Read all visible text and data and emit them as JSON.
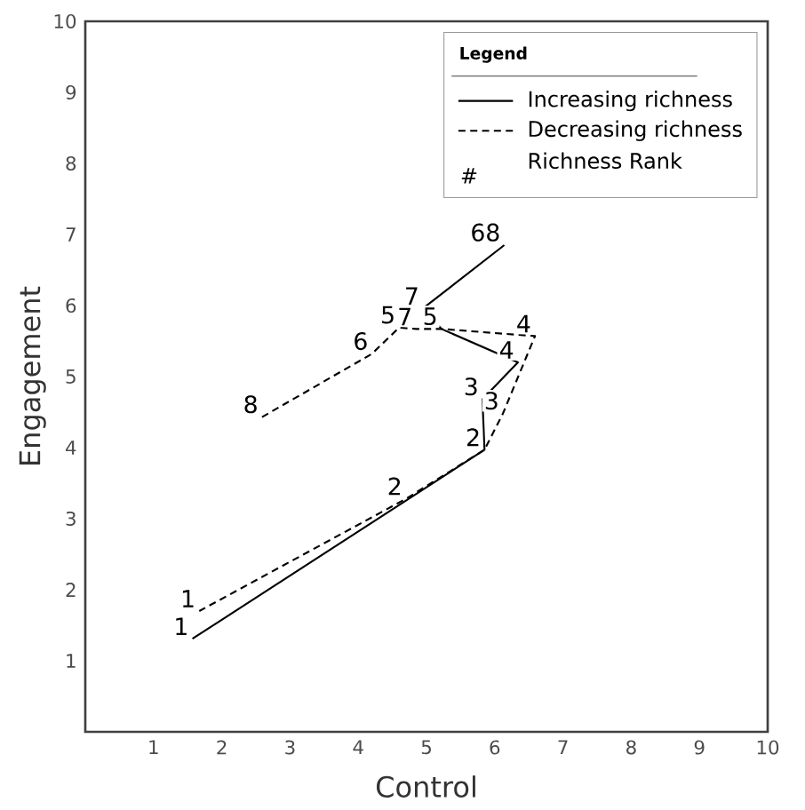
{
  "chart_data": {
    "type": "line",
    "xlabel": "Control",
    "ylabel": "Engagement",
    "xlim": [
      0,
      10
    ],
    "ylim": [
      0,
      10
    ],
    "xticks": [
      1,
      2,
      3,
      4,
      5,
      6,
      7,
      8,
      9,
      10
    ],
    "yticks": [
      1,
      2,
      3,
      4,
      5,
      6,
      7,
      8,
      9,
      10
    ],
    "legend": "top right",
    "legend_title": "Legend",
    "series": [
      {
        "name": "Increasing richness",
        "color": "#000000",
        "line_style": "solid",
        "x": [
          1.57,
          5.85,
          5.82,
          6.34,
          5.22,
          4.95,
          6.14
        ],
        "values": [
          1.31,
          3.97,
          4.68,
          5.2,
          5.67,
          5.96,
          6.85
        ]
      },
      {
        "name": "Decreasing richness",
        "color": "#000000",
        "line_style": "dashed",
        "x": [
          2.59,
          4.2,
          4.6,
          4.85,
          5.22,
          6.59,
          6.12,
          5.85,
          4.7,
          1.67
        ],
        "values": [
          4.43,
          5.32,
          5.69,
          5.67,
          5.67,
          5.57,
          4.48,
          3.97,
          3.28,
          1.7
        ]
      }
    ],
    "annotations": [
      {
        "text": "1",
        "x": 1.57,
        "y": 1.31
      },
      {
        "text": "1",
        "x": 1.67,
        "y": 1.7
      },
      {
        "text": "2",
        "x": 4.7,
        "y": 3.28
      },
      {
        "text": "2",
        "x": 5.85,
        "y": 3.97
      },
      {
        "text": "3",
        "x": 5.82,
        "y": 4.68
      },
      {
        "text": "3",
        "x": 6.12,
        "y": 4.48
      },
      {
        "text": "4",
        "x": 6.34,
        "y": 5.2
      },
      {
        "text": "4",
        "x": 6.59,
        "y": 5.57
      },
      {
        "text": "5",
        "x": 4.6,
        "y": 5.69
      },
      {
        "text": "7",
        "x": 4.85,
        "y": 5.67
      },
      {
        "text": "5",
        "x": 5.22,
        "y": 5.67
      },
      {
        "text": "7",
        "x": 4.95,
        "y": 5.96
      },
      {
        "text": "6",
        "x": 4.2,
        "y": 5.32
      },
      {
        "text": "68",
        "x": 6.14,
        "y": 6.85
      },
      {
        "text": "8",
        "x": 2.59,
        "y": 4.43
      },
      "#",
      "Richness Rank"
    ]
  }
}
